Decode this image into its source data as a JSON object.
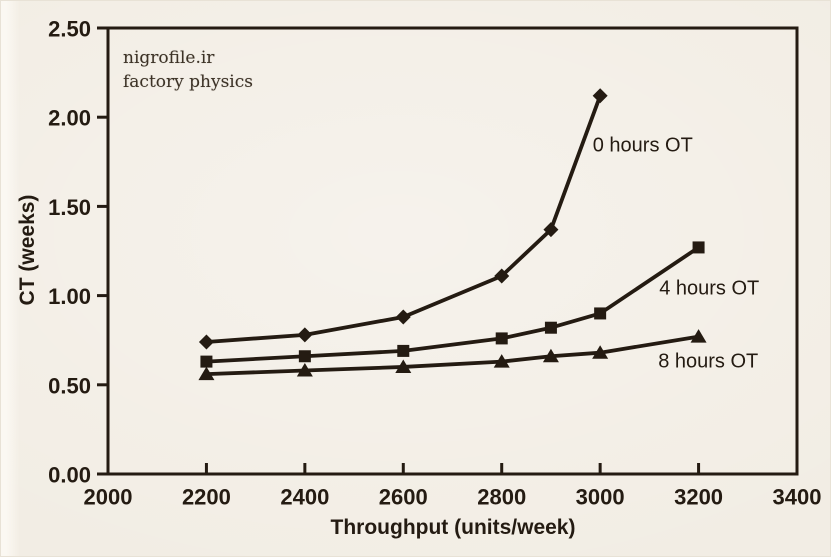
{
  "watermark": {
    "line1": "nigrofile.ir",
    "line2": "factory physics"
  },
  "colors": {
    "background": "#f1ece3",
    "ink": "#241b12",
    "watermark_ink": "#3c3226"
  },
  "chart_data": {
    "type": "line",
    "title": "",
    "xlabel": "Throughput (units/week)",
    "ylabel": "CT (weeks)",
    "xlim": [
      2000,
      3400
    ],
    "ylim": [
      0.0,
      2.5
    ],
    "x_ticks": [
      2000,
      2200,
      2400,
      2600,
      2800,
      3000,
      3200,
      3400
    ],
    "y_ticks": [
      0.0,
      0.5,
      1.0,
      1.5,
      2.0,
      2.5
    ],
    "y_tick_labels": [
      "0.00",
      "0.50",
      "1.00",
      "1.50",
      "2.00",
      "2.50"
    ],
    "grid": false,
    "legend_position": "inline-annotations",
    "series": [
      {
        "name": "0 hours OT",
        "marker": "diamond",
        "x": [
          2200,
          2400,
          2600,
          2800,
          2900,
          3000
        ],
        "y": [
          0.74,
          0.78,
          0.88,
          1.11,
          1.37,
          2.12
        ],
        "label_anchor": {
          "x": 2985,
          "y": 1.84
        }
      },
      {
        "name": "4 hours OT",
        "marker": "square",
        "x": [
          2200,
          2400,
          2600,
          2800,
          2900,
          3000,
          3200
        ],
        "y": [
          0.63,
          0.66,
          0.69,
          0.76,
          0.82,
          0.9,
          1.27
        ],
        "label_anchor": {
          "x": 3120,
          "y": 1.04
        }
      },
      {
        "name": "8 hours OT",
        "marker": "triangle",
        "x": [
          2200,
          2400,
          2600,
          2800,
          2900,
          3000,
          3200
        ],
        "y": [
          0.56,
          0.58,
          0.6,
          0.63,
          0.66,
          0.68,
          0.77
        ],
        "label_anchor": {
          "x": 3118,
          "y": 0.63
        }
      }
    ]
  }
}
